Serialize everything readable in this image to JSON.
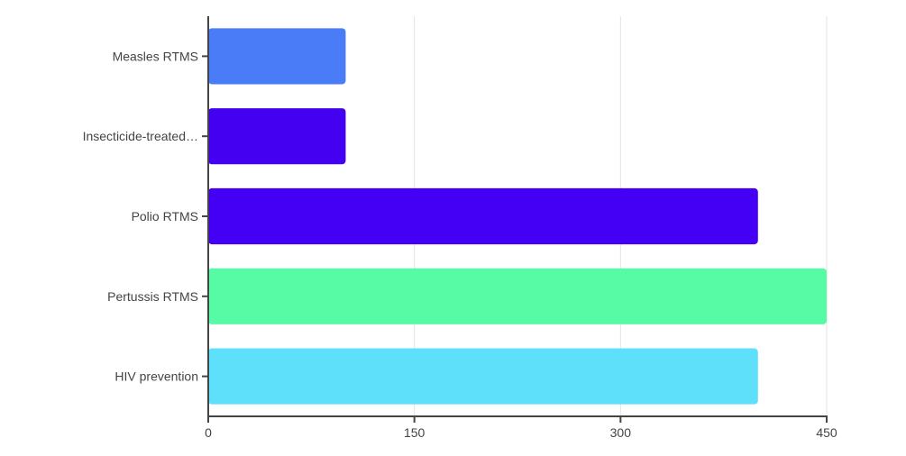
{
  "chart_data": {
    "type": "bar",
    "orientation": "horizontal",
    "title": "",
    "xlabel": "",
    "ylabel": "",
    "categories": [
      "Measles RTMS",
      "Insecticide-treated…",
      "Polio RTMS",
      "Pertussis RTMS",
      "HIV prevention"
    ],
    "values": [
      100,
      100,
      400,
      450,
      400
    ],
    "colors": [
      "#4a7cf7",
      "#4400f0",
      "#4400f5",
      "#57fba5",
      "#5ee0fa"
    ],
    "xlim": [
      0,
      450
    ],
    "xticks": [
      0,
      150,
      300,
      450
    ],
    "xtick_labels": [
      "0",
      "150",
      "300",
      "450"
    ],
    "grid": "vertical",
    "legend": "none"
  }
}
